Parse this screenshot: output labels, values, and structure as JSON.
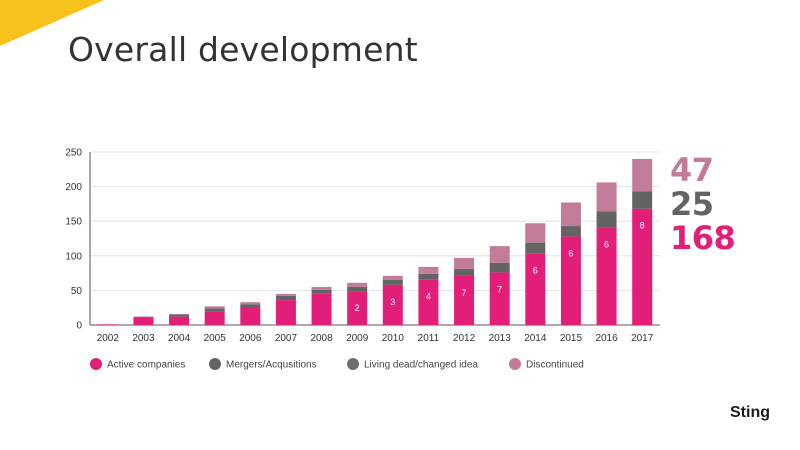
{
  "slide": {
    "title": "Overall development",
    "brand": "Sting"
  },
  "colors": {
    "accent": "#f7c21b",
    "active": "#e21e78",
    "mergers": "#636363",
    "living_dead": "#6e6e6e",
    "discontinued": "#c27b99",
    "axis": "#555555",
    "grid": "#dddddd"
  },
  "totals": [
    {
      "value": "47",
      "series": "Discontinued",
      "color": "#c27b99"
    },
    {
      "value": "25",
      "series": "Mergers/Acqusitions",
      "color": "#636363"
    },
    {
      "value": "168",
      "series": "Active companies",
      "color": "#e21e78"
    }
  ],
  "chart_data": {
    "type": "bar",
    "stacked": true,
    "title": "",
    "xlabel": "",
    "ylabel": "",
    "ylim": [
      0,
      250
    ],
    "yticks": [
      0,
      50,
      100,
      150,
      200,
      250
    ],
    "grid": true,
    "legend_position": "bottom",
    "categories": [
      "2002",
      "2003",
      "2004",
      "2005",
      "2006",
      "2007",
      "2008",
      "2009",
      "2010",
      "2011",
      "2012",
      "2013",
      "2014",
      "2015",
      "2016",
      "2017"
    ],
    "series": [
      {
        "name": "Active companies",
        "color": "#e21e78",
        "values": [
          1,
          11,
          12,
          20,
          26,
          36,
          45,
          49,
          58,
          66,
          71,
          76,
          103,
          128,
          141,
          168
        ],
        "labels": [
          "",
          "",
          "",
          "",
          "",
          "",
          "",
          "2",
          "3",
          "4",
          "7",
          "7",
          "6",
          "6",
          "6",
          "8"
        ]
      },
      {
        "name": "Mergers/Acqusitions",
        "color": "#636363",
        "values": [
          0,
          1,
          3,
          4,
          4,
          6,
          6,
          6,
          7,
          8,
          10,
          14,
          16,
          15,
          23,
          25
        ]
      },
      {
        "name": "Living dead/changed idea",
        "color": "#6e6e6e",
        "values": [
          0,
          0,
          0,
          0,
          0,
          0,
          0,
          0,
          0,
          0,
          0,
          0,
          0,
          0,
          0,
          0
        ]
      },
      {
        "name": "Discontinued",
        "color": "#c27b99",
        "values": [
          0,
          0,
          1,
          3,
          3,
          3,
          4,
          6,
          6,
          10,
          16,
          24,
          28,
          34,
          42,
          47
        ]
      }
    ]
  }
}
